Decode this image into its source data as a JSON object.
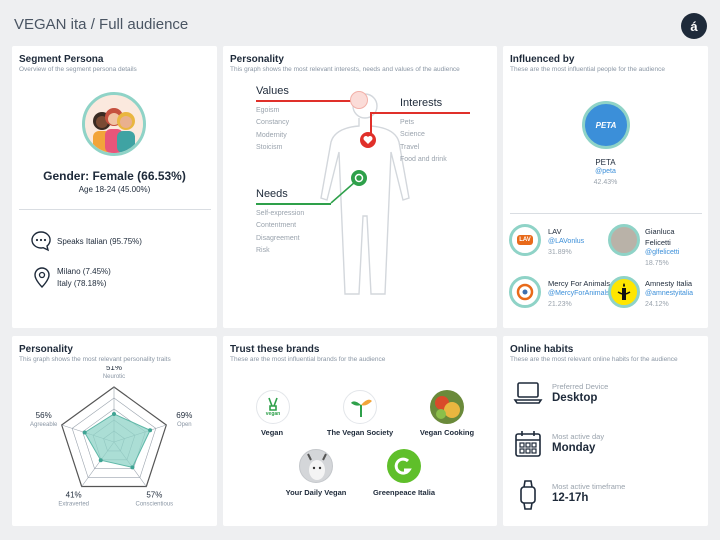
{
  "header": {
    "title": "VEGAN ita / Full audience",
    "logo_glyph": "á"
  },
  "segment": {
    "title": "Segment Persona",
    "subtitle": "Overview of the segment persona details",
    "gender": "Gender: Female (66.53%)",
    "age": "Age 18-24 (45.00%)",
    "language": "Speaks Italian (95.75%)",
    "city": "Milano (7.45%)",
    "country": "Italy (78.18%)"
  },
  "personality_top": {
    "title": "Personality",
    "subtitle": "This graph shows the most relevant interests, needs and values of the audience",
    "values_title": "Values",
    "values": [
      "Egoism",
      "Constancy",
      "Modernity",
      "Stoicism"
    ],
    "interests_title": "Interests",
    "interests": [
      "Pets",
      "Science",
      "Travel",
      "Food and drink"
    ],
    "needs_title": "Needs",
    "needs": [
      "Self-expression",
      "Contentment",
      "Disagreement",
      "Risk"
    ]
  },
  "influenced": {
    "title": "Influenced by",
    "subtitle": "These are the most influential people for the audience",
    "main": {
      "name": "PETA",
      "handle": "@peta",
      "pct": "42.43%",
      "logo_text": "PETA"
    },
    "others": [
      {
        "name": "LAV",
        "handle": "@LAVonlus",
        "pct": "31.89%",
        "logo_text": "LAV"
      },
      {
        "name": "Gianluca",
        "name2": "Felicetti",
        "handle": "@glfelicetti",
        "pct": "18.75%"
      },
      {
        "name": "Mercy For Animals",
        "handle": "@MercyForAnimals",
        "pct": "21.23%"
      },
      {
        "name": "Amnesty Italia",
        "handle": "@amnestyitalia",
        "pct": "24.12%"
      }
    ]
  },
  "personality_radar": {
    "title": "Personality",
    "subtitle": "This graph shows the most relevant personality traits",
    "traits": [
      {
        "name": "Neurotic",
        "pct": "51%",
        "value": 0.51
      },
      {
        "name": "Open",
        "pct": "69%",
        "value": 0.69
      },
      {
        "name": "Conscientious",
        "pct": "57%",
        "value": 0.57
      },
      {
        "name": "Extraverted",
        "pct": "41%",
        "value": 0.41
      },
      {
        "name": "Agreeable",
        "pct": "56%",
        "value": 0.56
      }
    ]
  },
  "brands": {
    "title": "Trust these brands",
    "subtitle": "These are the most influential brands for the audience",
    "items": [
      {
        "name": "Vegan",
        "logo_text": "vegan"
      },
      {
        "name": "The Vegan Society"
      },
      {
        "name": "Vegan Cooking"
      },
      {
        "name": "Your Daily Vegan"
      },
      {
        "name": "Greenpeace Italia"
      }
    ]
  },
  "habits": {
    "title": "Online habits",
    "subtitle": "These are the most relevant online habits for the audience",
    "device_label": "Preferred Device",
    "device_value": "Desktop",
    "day_label": "Most active day",
    "day_value": "Monday",
    "time_label": "Most active timeframe",
    "time_value": "12-17h"
  },
  "colors": {
    "accent_red": "#e0302a",
    "accent_green": "#2ea04a",
    "teal": "#8fd3c7",
    "dark": "#1e2a3a"
  },
  "chart_data": {
    "type": "radar",
    "categories": [
      "Neurotic",
      "Open",
      "Conscientious",
      "Extraverted",
      "Agreeable"
    ],
    "values": [
      51,
      69,
      57,
      41,
      56
    ],
    "ylim": [
      0,
      100
    ]
  }
}
